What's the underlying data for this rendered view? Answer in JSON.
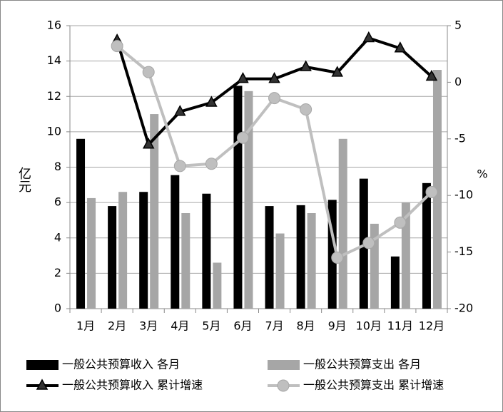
{
  "chart_data": {
    "type": "combo",
    "categories": [
      "1月",
      "2月",
      "3月",
      "4月",
      "5月",
      "6月",
      "7月",
      "8月",
      "9月",
      "10月",
      "11月",
      "12月"
    ],
    "y_label": "亿元",
    "y2_label": "%",
    "ylim": [
      0,
      16
    ],
    "yticks": [
      0,
      2,
      4,
      6,
      8,
      10,
      12,
      14,
      16
    ],
    "y2lim": [
      -20,
      5
    ],
    "y2ticks": [
      -20,
      -15,
      -10,
      -5,
      0,
      5
    ],
    "grid": true,
    "series": [
      {
        "name": "一般公共预算收入 各月",
        "type": "bar",
        "color": "#000000",
        "values": [
          9.6,
          5.8,
          6.6,
          7.55,
          6.5,
          12.6,
          5.8,
          5.85,
          6.15,
          7.35,
          2.95,
          7.1
        ]
      },
      {
        "name": "一般公共预算支出 各月",
        "type": "bar",
        "color": "#a6a6a6",
        "values": [
          6.25,
          6.6,
          11.0,
          5.4,
          2.6,
          12.3,
          4.25,
          5.4,
          9.6,
          4.8,
          6.0,
          13.5
        ]
      },
      {
        "name": "一般公共预算收入 累计增速",
        "type": "line",
        "marker": "triangle",
        "color": "#000000",
        "axis": "y2",
        "values": [
          null,
          3.7,
          -5.5,
          -2.6,
          -1.8,
          0.3,
          0.3,
          1.35,
          0.85,
          3.9,
          3.0,
          0.5
        ]
      },
      {
        "name": "一般公共预算支出 累计增速",
        "type": "line",
        "marker": "circle",
        "color": "#bfbfbf",
        "axis": "y2",
        "values": [
          null,
          3.2,
          0.9,
          -7.4,
          -7.2,
          -4.9,
          -1.4,
          -2.4,
          -15.5,
          -14.2,
          -12.4,
          -9.7
        ]
      }
    ]
  }
}
